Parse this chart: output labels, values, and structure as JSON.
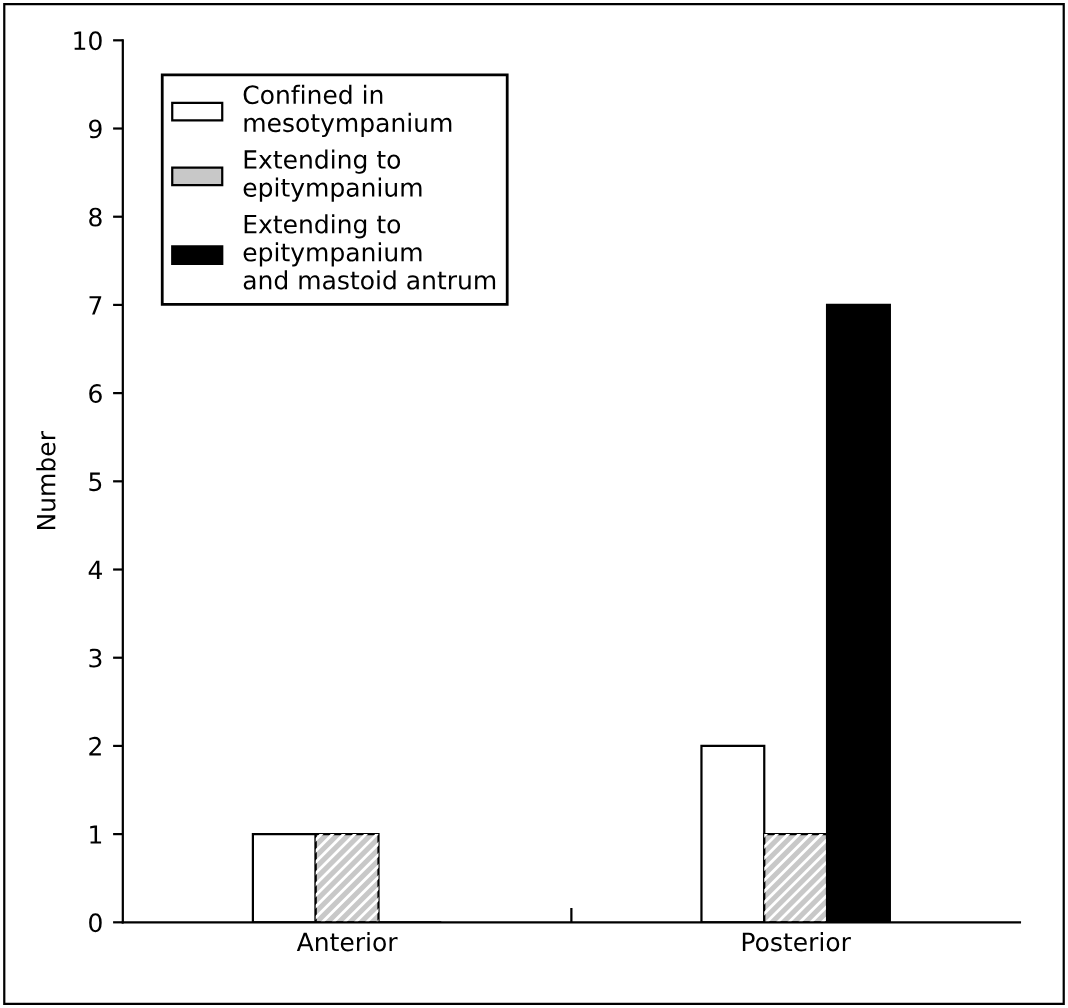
{
  "chart_data": {
    "type": "bar",
    "ylabel": "Number",
    "categories": [
      "Anterior",
      "Posterior"
    ],
    "series": [
      {
        "name": "Confined in\nmesotympanium",
        "color": "#ffffff",
        "values": [
          1,
          2
        ]
      },
      {
        "name": "Extending to\nepitympanium",
        "color": "#c8c8c8",
        "values": [
          1,
          1
        ]
      },
      {
        "name": "Extending to\nepitympanium\nand mastoid antrum",
        "color": "#000000",
        "values": [
          0,
          7
        ]
      }
    ],
    "ylim": [
      0,
      10
    ],
    "yticks": [
      0,
      1,
      2,
      3,
      4,
      5,
      6,
      7,
      8,
      9,
      10
    ],
    "grid": false,
    "legend": "top left"
  }
}
